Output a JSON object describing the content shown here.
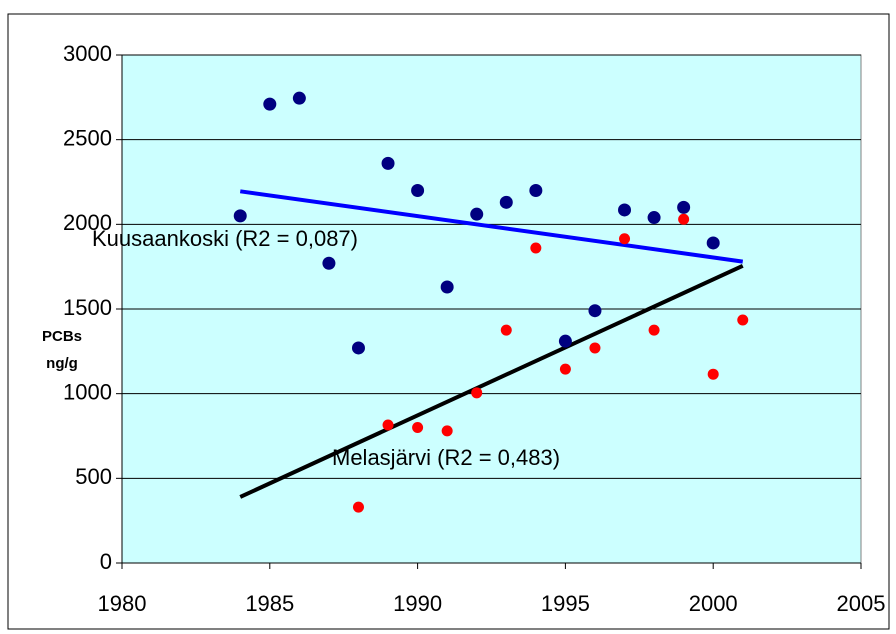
{
  "chart_data": {
    "type": "scatter",
    "ylabel": [
      "PCBs",
      "ng/g"
    ],
    "xlim": [
      1980,
      2005
    ],
    "xticks": [
      1980,
      1985,
      1990,
      1995,
      2000,
      2005
    ],
    "ylim": [
      0,
      3000
    ],
    "yticks": [
      0,
      500,
      1000,
      1500,
      2000,
      2500,
      3000
    ],
    "grid": true,
    "series": [
      {
        "color": "#000080",
        "x": [
          1984,
          1985,
          1986,
          1987,
          1988,
          1989,
          1990,
          1991,
          1992,
          1993,
          1994,
          1995,
          1996,
          1997,
          1998,
          1999,
          2000
        ],
        "values": [
          2050,
          2710,
          2745,
          1770,
          1270,
          2360,
          2200,
          1630,
          2060,
          2130,
          2200,
          1310,
          1490,
          2085,
          2040,
          2100,
          1890
        ]
      },
      {
        "color": "#ff0000",
        "x": [
          1988,
          1989,
          1990,
          1991,
          1992,
          1993,
          1994,
          1995,
          1996,
          1997,
          1998,
          1999,
          2000,
          2001
        ],
        "values": [
          330,
          815,
          800,
          780,
          1005,
          1375,
          1860,
          1145,
          1270,
          1915,
          1375,
          2030,
          1115,
          1435
        ]
      }
    ],
    "trendlines": [
      {
        "color": "#0000ff",
        "x": [
          1984,
          2001
        ],
        "values": [
          2195,
          1780
        ]
      },
      {
        "color": "#000000",
        "x": [
          1984,
          2001
        ],
        "values": [
          390,
          1755
        ]
      }
    ],
    "annotations": [
      "Kuusaankoski (R2 = 0,087)",
      "Melasjärvi (R2 = 0,483)"
    ]
  }
}
